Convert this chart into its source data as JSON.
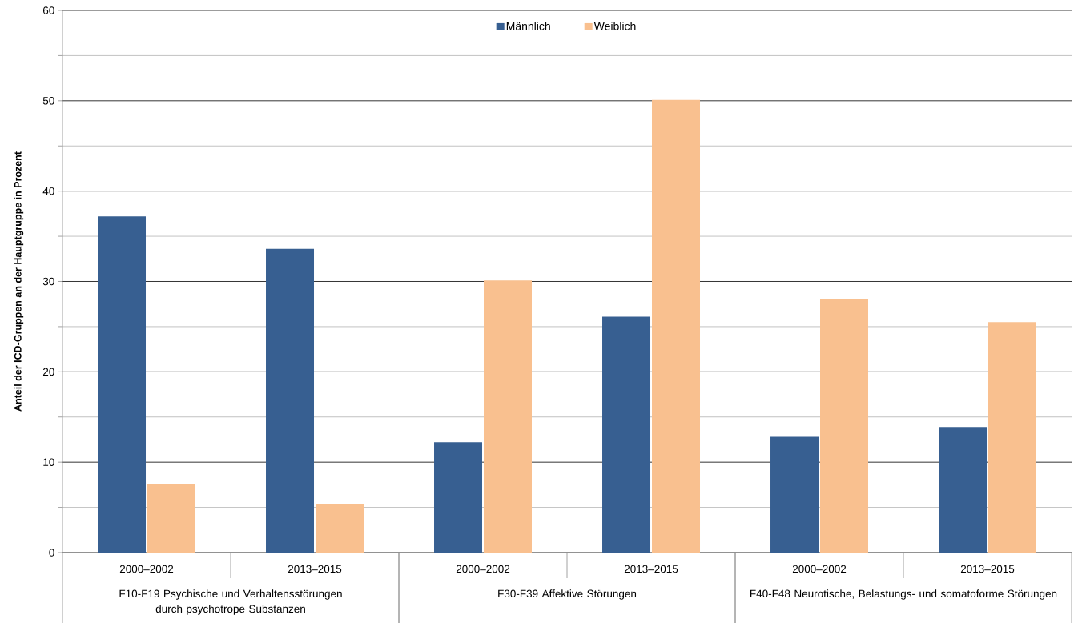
{
  "chart_data": {
    "type": "bar",
    "ylabel": "Anteil der ICD-Gruppen an der Hauptgruppe in Prozent",
    "categories": [
      "2000–2002",
      "2013–2015",
      "2000–2002",
      "2013–2015",
      "2000–2002",
      "2013–2015"
    ],
    "series": [
      {
        "name": "Männlich",
        "color": "#375f91",
        "values": [
          37.2,
          33.6,
          12.2,
          26.1,
          12.8,
          13.9
        ]
      },
      {
        "name": "Weiblich",
        "color": "#f9c08f",
        "values": [
          7.6,
          5.4,
          30.1,
          50.1,
          28.1,
          25.5
        ]
      }
    ],
    "annotations": [
      "F10-F19 Psychische und Verhaltensstörungen durch psychotrope Substanzen",
      "F30-F39 Affektive Störungen",
      "F40-F48 Neurotische, Belastungs- und somatoforme Störungen"
    ],
    "ylim": [
      0,
      60
    ],
    "yticks": [
      0,
      {
        "value": 5,
        "label": null
      },
      10,
      {
        "value": 15,
        "label": null
      },
      20,
      {
        "value": 25,
        "label": null
      },
      30,
      {
        "value": 35,
        "label": null
      },
      40,
      {
        "value": 45,
        "label": null
      },
      50,
      {
        "value": 55,
        "label": null
      },
      60
    ],
    "grid": "y",
    "legend": "top"
  }
}
